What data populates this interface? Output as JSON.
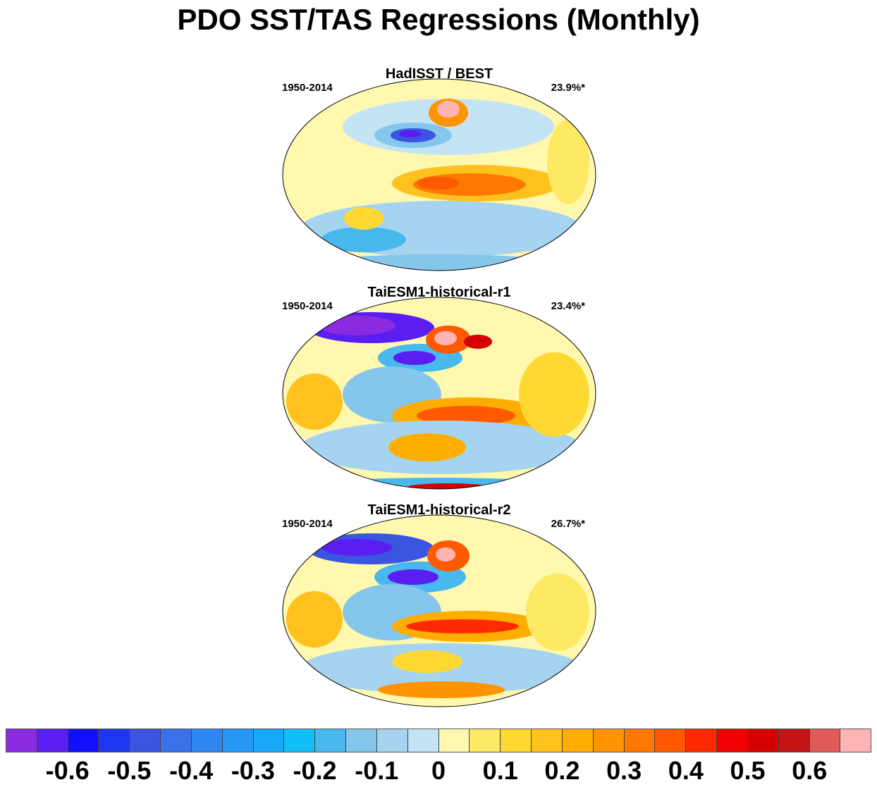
{
  "title": "PDO SST/TAS Regressions (Monthly)",
  "panels": [
    {
      "title": "HadISST / BEST",
      "left": "1950-2014",
      "right": "23.9%*"
    },
    {
      "title": "TaiESM1-historical-r1",
      "left": "1950-2014",
      "right": "23.4%*"
    },
    {
      "title": "TaiESM1-historical-r2",
      "left": "1950-2014",
      "right": "26.7%*"
    }
  ],
  "colorbar": {
    "colors": [
      "#8a2be2",
      "#5a1ef0",
      "#1010ff",
      "#1e36f0",
      "#3a55e0",
      "#3a70e8",
      "#2e86f2",
      "#2898f6",
      "#18a8f8",
      "#12bff8",
      "#48b8ee",
      "#84c6ec",
      "#a6d4f0",
      "#c4e4f6",
      "#fff8ae",
      "#fde964",
      "#ffd832",
      "#ffc11e",
      "#ffad00",
      "#ff9400",
      "#ff7800",
      "#ff5a00",
      "#ff2a00",
      "#f00000",
      "#d60000",
      "#c21414",
      "#e05a5a",
      "#ffb4b4"
    ],
    "ticks": [
      "-0.6",
      "-0.5",
      "-0.4",
      "-0.3",
      "-0.2",
      "-0.1",
      "0",
      "0.1",
      "0.2",
      "0.3",
      "0.4",
      "0.5",
      "0.6"
    ]
  }
}
